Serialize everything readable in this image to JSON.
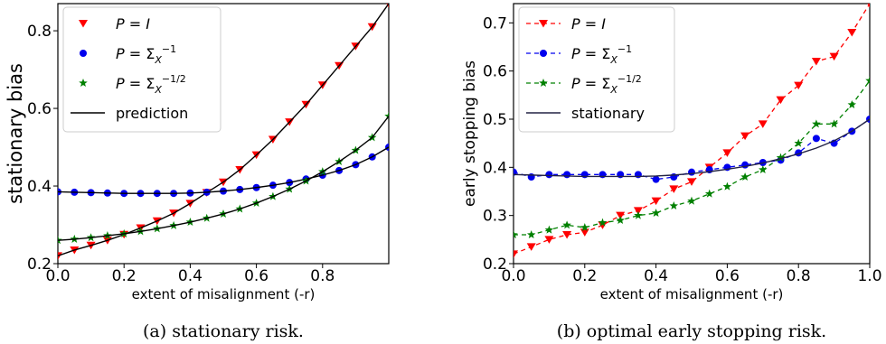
{
  "chart_data": [
    {
      "type": "line",
      "caption": "(a) stationary risk.",
      "xlabel": "extent of misalignment (-r)",
      "ylabel": "stationary bias",
      "xlim": [
        0.0,
        1.0
      ],
      "ylim": [
        0.2,
        0.87
      ],
      "xticks": [
        "0.0",
        "0.2",
        "0.4",
        "0.6",
        "0.8"
      ],
      "yticks": [
        "0.2",
        "0.4",
        "0.6",
        "0.8"
      ],
      "legend_position": "top-left",
      "series": [
        {
          "name_var": "P",
          "name_rel": "=",
          "name_val": "I",
          "color": "#ff0000",
          "marker": "triangle-down",
          "x": [
            0.0,
            0.05,
            0.1,
            0.15,
            0.2,
            0.25,
            0.3,
            0.35,
            0.4,
            0.45,
            0.5,
            0.55,
            0.6,
            0.65,
            0.7,
            0.75,
            0.8,
            0.85,
            0.9,
            0.95,
            1.0
          ],
          "y": [
            0.22,
            0.235,
            0.247,
            0.26,
            0.275,
            0.292,
            0.31,
            0.33,
            0.355,
            0.383,
            0.41,
            0.442,
            0.48,
            0.52,
            0.565,
            0.61,
            0.66,
            0.71,
            0.76,
            0.81,
            0.87
          ]
        },
        {
          "name_var": "P",
          "name_rel": "=",
          "name_val": "Σ",
          "name_sub": "X",
          "name_sup": "−1",
          "color": "#0000ee",
          "marker": "circle",
          "x": [
            0.0,
            0.05,
            0.1,
            0.15,
            0.2,
            0.25,
            0.3,
            0.35,
            0.4,
            0.45,
            0.5,
            0.55,
            0.6,
            0.65,
            0.7,
            0.75,
            0.8,
            0.85,
            0.9,
            0.95,
            1.0
          ],
          "y": [
            0.385,
            0.384,
            0.383,
            0.382,
            0.381,
            0.381,
            0.381,
            0.381,
            0.382,
            0.384,
            0.387,
            0.391,
            0.396,
            0.402,
            0.409,
            0.418,
            0.428,
            0.44,
            0.455,
            0.475,
            0.5
          ]
        },
        {
          "name_var": "P",
          "name_rel": "=",
          "name_val": "Σ",
          "name_sub": "X",
          "name_sup": "−1/2",
          "color": "#008000",
          "marker": "star",
          "x": [
            0.0,
            0.05,
            0.1,
            0.15,
            0.2,
            0.25,
            0.3,
            0.35,
            0.4,
            0.45,
            0.5,
            0.55,
            0.6,
            0.65,
            0.7,
            0.75,
            0.8,
            0.85,
            0.9,
            0.95,
            1.0
          ],
          "y": [
            0.26,
            0.263,
            0.267,
            0.272,
            0.277,
            0.283,
            0.29,
            0.298,
            0.307,
            0.317,
            0.328,
            0.341,
            0.356,
            0.373,
            0.392,
            0.413,
            0.437,
            0.463,
            0.492,
            0.525,
            0.58
          ]
        },
        {
          "name": "prediction",
          "color": "#000000",
          "marker": "none",
          "style": "solid"
        }
      ]
    },
    {
      "type": "line",
      "caption": "(b) optimal early stopping risk.",
      "xlabel": "extent of misalignment (-r)",
      "ylabel": "early stopping bias",
      "xlim": [
        0.0,
        1.0
      ],
      "ylim": [
        0.2,
        0.74
      ],
      "xticks": [
        "0.0",
        "0.2",
        "0.4",
        "0.6",
        "0.8",
        "1.0"
      ],
      "yticks": [
        "0.2",
        "0.3",
        "0.4",
        "0.5",
        "0.6",
        "0.7"
      ],
      "legend_position": "top-left",
      "series": [
        {
          "name_var": "P",
          "name_rel": "=",
          "name_val": "I",
          "color": "#ff0000",
          "marker": "triangle-down",
          "style": "dashed",
          "x": [
            0.0,
            0.05,
            0.1,
            0.15,
            0.2,
            0.25,
            0.3,
            0.35,
            0.4,
            0.45,
            0.5,
            0.55,
            0.6,
            0.65,
            0.7,
            0.75,
            0.8,
            0.85,
            0.9,
            0.95,
            1.0
          ],
          "y": [
            0.22,
            0.235,
            0.25,
            0.26,
            0.265,
            0.28,
            0.3,
            0.31,
            0.33,
            0.355,
            0.37,
            0.4,
            0.43,
            0.465,
            0.49,
            0.54,
            0.57,
            0.62,
            0.63,
            0.68,
            0.74
          ]
        },
        {
          "name_var": "P",
          "name_rel": "=",
          "name_val": "Σ",
          "name_sub": "X",
          "name_sup": "−1",
          "color": "#0000ee",
          "marker": "circle",
          "style": "dashed",
          "x": [
            0.0,
            0.05,
            0.1,
            0.15,
            0.2,
            0.25,
            0.3,
            0.35,
            0.4,
            0.45,
            0.5,
            0.55,
            0.6,
            0.65,
            0.7,
            0.75,
            0.8,
            0.85,
            0.9,
            0.95,
            1.0
          ],
          "y": [
            0.39,
            0.38,
            0.385,
            0.385,
            0.385,
            0.385,
            0.385,
            0.385,
            0.375,
            0.38,
            0.39,
            0.395,
            0.4,
            0.405,
            0.41,
            0.415,
            0.43,
            0.46,
            0.45,
            0.475,
            0.5
          ]
        },
        {
          "name_var": "P",
          "name_rel": "=",
          "name_val": "Σ",
          "name_sub": "X",
          "name_sup": "−1/2",
          "color": "#008000",
          "marker": "star",
          "style": "dashed",
          "x": [
            0.0,
            0.05,
            0.1,
            0.15,
            0.2,
            0.25,
            0.3,
            0.35,
            0.4,
            0.45,
            0.5,
            0.55,
            0.6,
            0.65,
            0.7,
            0.75,
            0.8,
            0.85,
            0.9,
            0.95,
            1.0
          ],
          "y": [
            0.26,
            0.26,
            0.27,
            0.28,
            0.275,
            0.285,
            0.29,
            0.3,
            0.305,
            0.32,
            0.33,
            0.345,
            0.36,
            0.38,
            0.395,
            0.42,
            0.45,
            0.49,
            0.49,
            0.53,
            0.58
          ]
        },
        {
          "name": "stationary",
          "color": "#222244",
          "marker": "none",
          "style": "solid"
        }
      ]
    }
  ]
}
